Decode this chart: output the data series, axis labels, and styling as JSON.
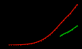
{
  "background_color": "#000000",
  "red_line": {
    "x": [
      1950,
      1952,
      1954,
      1956,
      1958,
      1960,
      1962,
      1964,
      1966,
      1968,
      1970,
      1972,
      1974,
      1976,
      1978,
      1980,
      1982,
      1984,
      1986,
      1988,
      1990,
      1992,
      1994,
      1996,
      1998,
      2000,
      2002,
      2004,
      2006,
      2008,
      2010
    ],
    "y": [
      0.05,
      0.08,
      0.1,
      0.13,
      0.17,
      0.22,
      0.28,
      0.35,
      0.45,
      0.6,
      0.8,
      1.05,
      1.4,
      1.8,
      2.3,
      2.9,
      3.6,
      4.4,
      5.3,
      6.3,
      7.5,
      8.7,
      10.0,
      11.3,
      12.5,
      13.8,
      14.9,
      16.0,
      17.5,
      19.0,
      20.5
    ],
    "color": "#ff1100",
    "linewidth": 0.8
  },
  "green_line": {
    "x": [
      1995,
      1996,
      1997,
      1998,
      1999,
      2000,
      2001,
      2002,
      2003,
      2004,
      2005,
      2006,
      2007,
      2008,
      2009,
      2010
    ],
    "y": [
      4.5,
      5.0,
      5.3,
      5.6,
      5.9,
      6.1,
      6.4,
      6.7,
      7.0,
      7.3,
      7.7,
      8.1,
      8.5,
      8.9,
      9.3,
      9.8
    ],
    "color": "#00cc00",
    "linewidth": 0.8
  },
  "xlim": [
    1948,
    2012
  ],
  "ylim": [
    0,
    22
  ],
  "figsize": [
    1.2,
    0.72
  ],
  "dpi": 100
}
